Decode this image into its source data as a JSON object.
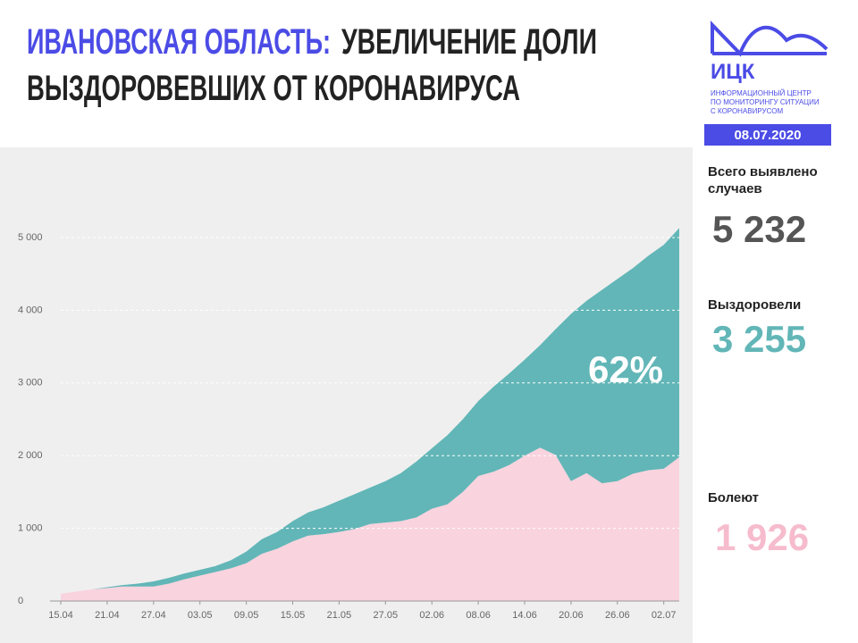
{
  "header": {
    "title_highlight": "ИВАНОВСКАЯ ОБЛАСТЬ:",
    "title_rest": "УВЕЛИЧЕНИЕ ДОЛИ",
    "title_line2": "ВЫЗДОРОВЕВШИХ ОТ КОРОНАВИРУСА",
    "logo": "ИЦК",
    "logo_lines": [
      "ИНФОРМАЦИОННЫЙ ЦЕНТР",
      "ПО МОНИТОРИНГУ СИТУАЦИИ",
      "С КОРОНАВИРУСОМ"
    ],
    "date": "08.07.2020"
  },
  "stats": {
    "total_label": "Всего выявлено случаев",
    "total": "5 232",
    "recovered": "3 255",
    "active": "1 926"
  },
  "chart_data": {
    "type": "stacked_area",
    "annotation": "62%",
    "categories": [
      "15.04",
      null,
      null,
      "21.04",
      null,
      null,
      "27.04",
      null,
      null,
      "03.05",
      null,
      null,
      "09.05",
      null,
      null,
      "15.05",
      null,
      null,
      "21.05",
      null,
      null,
      "27.05",
      null,
      null,
      "02.06",
      null,
      null,
      "08.06",
      null,
      null,
      "14.06",
      null,
      null,
      "20.06",
      null,
      null,
      "26.06",
      null,
      null,
      "02.07",
      null
    ],
    "series": [
      {
        "name": "Болеют",
        "color": "#f9d3de",
        "values": [
          100,
          130,
          160,
          180,
          200,
          200,
          200,
          240,
          300,
          350,
          400,
          450,
          520,
          650,
          720,
          820,
          900,
          920,
          950,
          990,
          1060,
          1080,
          1100,
          1150,
          1270,
          1330,
          1500,
          1720,
          1780,
          1870,
          2000,
          2110,
          2010,
          1650,
          1760,
          1620,
          1650,
          1750,
          1800,
          1820,
          1980
        ]
      },
      {
        "name": "Выздоровели",
        "color": "#62b6b7",
        "values": [
          0,
          0,
          0,
          10,
          20,
          40,
          70,
          80,
          80,
          80,
          80,
          110,
          160,
          200,
          230,
          280,
          320,
          370,
          430,
          480,
          500,
          570,
          660,
          770,
          830,
          950,
          1000,
          1030,
          1170,
          1260,
          1320,
          1410,
          1730,
          2300,
          2370,
          2660,
          2780,
          2830,
          2950,
          3080,
          3150
        ]
      }
    ],
    "ylim": [
      0,
      5000
    ],
    "yticks": [
      0,
      {
        "value": 1000,
        "label": "1 000"
      },
      {
        "value": 2000,
        "label": "2 000"
      },
      {
        "value": 3000,
        "label": "3 000"
      },
      {
        "value": 4000,
        "label": "4 000"
      },
      {
        "value": 5000,
        "label": "5 000"
      }
    ],
    "grid": true
  }
}
